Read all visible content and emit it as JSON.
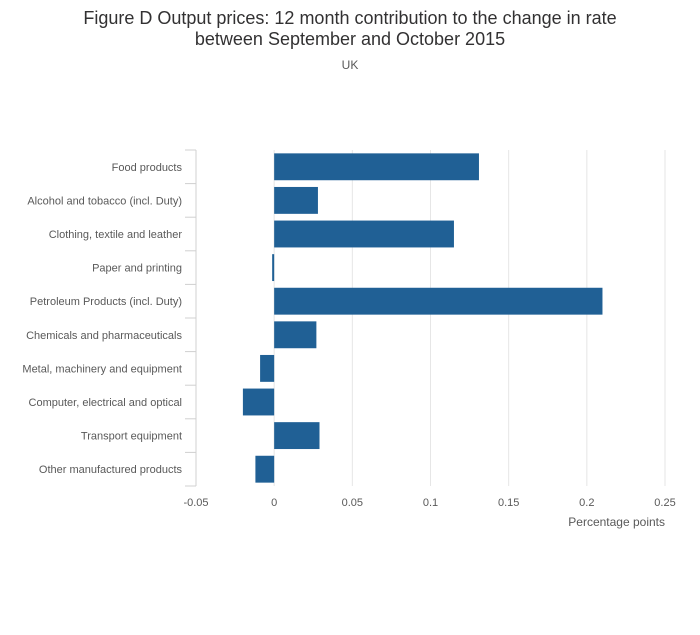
{
  "header": {
    "title_line1": "Figure D Output prices: 12 month contribution to the change in rate",
    "title_line2": "between September and October 2015",
    "subtitle": "UK"
  },
  "colors": {
    "bar": "#206095",
    "grid": "#e6e6e6",
    "axis": "#d0d0d0"
  },
  "chart_data": {
    "type": "bar",
    "orientation": "horizontal",
    "title": "Figure D Output prices: 12 month contribution to the change in rate between September and October 2015",
    "subtitle": "UK",
    "xlabel": "Percentage points",
    "ylabel": "",
    "xlim": [
      -0.05,
      0.25
    ],
    "xticks": [
      -0.05,
      0,
      0.05,
      0.1,
      0.15,
      0.2,
      0.25
    ],
    "xtick_labels": [
      "-0.05",
      "0",
      "0.05",
      "0.1",
      "0.15",
      "0.2",
      "0.25"
    ],
    "grid": true,
    "categories": [
      "Food products",
      "Alcohol and tobacco (incl. Duty)",
      "Clothing, textile and leather",
      "Paper and printing",
      "Petroleum Products (incl. Duty)",
      "Chemicals and pharmaceuticals",
      "Metal, machinery and equipment",
      "Computer, electrical and optical",
      "Transport equipment",
      "Other manufactured products"
    ],
    "values": [
      0.131,
      0.028,
      0.115,
      -0.001,
      0.21,
      0.027,
      -0.009,
      -0.02,
      0.029,
      -0.012
    ]
  }
}
